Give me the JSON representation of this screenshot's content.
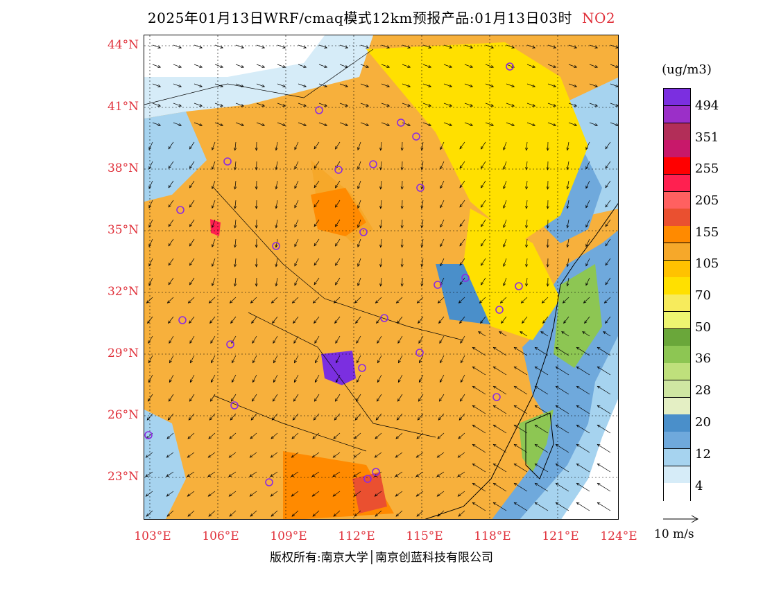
{
  "title": {
    "main": "2025年01月13日WRF/cmaq模式12km预报产品:01月13日03时",
    "pollutant": "NO2"
  },
  "lat_labels": [
    "44°N",
    "41°N",
    "38°N",
    "35°N",
    "32°N",
    "29°N",
    "26°N",
    "23°N"
  ],
  "lon_labels": [
    "103°E",
    "106°E",
    "109°E",
    "112°E",
    "115°E",
    "118°E",
    "121°E",
    "124°E"
  ],
  "copyright": "版权所有:南京大学│南京创蓝科技有限公司",
  "colorbar": {
    "unit": "(ug/m3)",
    "labels": [
      "494",
      "351",
      "255",
      "205",
      "155",
      "105",
      "70",
      "50",
      "36",
      "28",
      "20",
      "12",
      "4"
    ],
    "colors": [
      "#7b2fe0",
      "#9b2fc8",
      "#b22e58",
      "#c8186a",
      "#ff0000",
      "#ff2050",
      "#ff6060",
      "#ea5030",
      "#ff8a00",
      "#f6a82a",
      "#ffc200",
      "#ffe000",
      "#f7eb5c",
      "#eef571",
      "#6aa73a",
      "#8dc653",
      "#bfe07c",
      "#cfe6a2",
      "#e4efc4",
      "#4a8fca",
      "#6fa9dc",
      "#a6d3ef",
      "#d6ecf8",
      "#ffffff"
    ]
  },
  "wind_reference": {
    "label": "10 m/s"
  }
}
